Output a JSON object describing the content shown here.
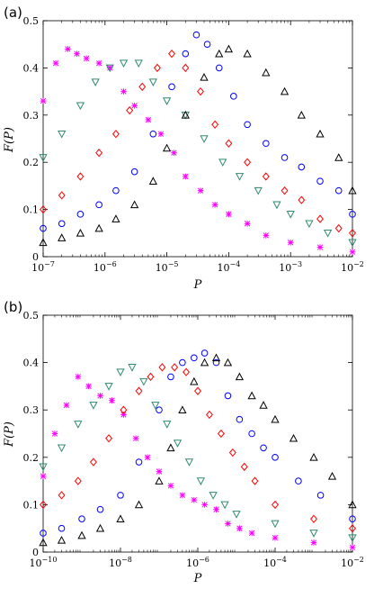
{
  "chart_data": [
    {
      "panel": "(a)",
      "type": "scatter",
      "xlabel": "P",
      "ylabel": "F(P)",
      "xscale": "log",
      "xlim": [
        1e-07,
        0.01
      ],
      "ylim": [
        0,
        0.5
      ],
      "x_ticks": [
        1e-07,
        1e-06,
        1e-05,
        0.0001,
        0.001,
        0.01
      ],
      "x_tick_labels": [
        {
          "base": "10",
          "exp": "−7"
        },
        {
          "base": "10",
          "exp": "−6"
        },
        {
          "base": "10",
          "exp": "−5"
        },
        {
          "base": "10",
          "exp": "−4"
        },
        {
          "base": "10",
          "exp": "−3"
        },
        {
          "base": "10",
          "exp": "−2"
        }
      ],
      "y_ticks": [
        0,
        0.1,
        0.2,
        0.3,
        0.4,
        0.5
      ],
      "y_tick_labels": [
        "0",
        "0.1",
        "0.2",
        "0.3",
        "0.4",
        "0.5"
      ],
      "grid": false,
      "series": [
        {
          "marker": "asterisk",
          "color": "#ff00ff",
          "x": [
            1e-07,
            1.6e-07,
            2.5e-07,
            3.5e-07,
            5e-07,
            8e-07,
            1.2e-06,
            2e-06,
            3e-06,
            5e-06,
            8e-06,
            1.3e-05,
            2e-05,
            3.5e-05,
            6e-05,
            0.0001,
            0.0002,
            0.0004,
            0.001,
            0.003,
            0.01
          ],
          "y": [
            0.33,
            0.41,
            0.44,
            0.43,
            0.42,
            0.41,
            0.4,
            0.35,
            0.32,
            0.29,
            0.26,
            0.22,
            0.17,
            0.14,
            0.11,
            0.09,
            0.07,
            0.045,
            0.03,
            0.02,
            0.01
          ]
        },
        {
          "marker": "triangle-down",
          "color": "#2e8b6e",
          "x": [
            1e-07,
            2e-07,
            4e-07,
            7e-07,
            1.2e-06,
            2e-06,
            3.5e-06,
            6e-06,
            1e-05,
            2e-05,
            4e-05,
            8e-05,
            0.00015,
            0.0003,
            0.0006,
            0.001,
            0.002,
            0.004,
            0.01
          ],
          "y": [
            0.21,
            0.26,
            0.32,
            0.37,
            0.4,
            0.41,
            0.41,
            0.37,
            0.33,
            0.3,
            0.25,
            0.2,
            0.17,
            0.14,
            0.11,
            0.09,
            0.07,
            0.05,
            0.03
          ]
        },
        {
          "marker": "diamond",
          "color": "#ff0000",
          "x": [
            1e-07,
            2e-07,
            4e-07,
            8e-07,
            1.5e-06,
            2.5e-06,
            4e-06,
            7e-06,
            1.2e-05,
            2e-05,
            3.5e-05,
            6e-05,
            0.0001,
            0.0002,
            0.0004,
            0.0008,
            0.0015,
            0.003,
            0.006,
            0.01
          ],
          "y": [
            0.1,
            0.13,
            0.17,
            0.22,
            0.26,
            0.31,
            0.36,
            0.4,
            0.43,
            0.4,
            0.35,
            0.28,
            0.24,
            0.2,
            0.17,
            0.14,
            0.12,
            0.08,
            0.06,
            0.05
          ]
        },
        {
          "marker": "circle",
          "color": "#0000ff",
          "x": [
            1e-07,
            2e-07,
            4e-07,
            8e-07,
            1.5e-06,
            3e-06,
            6e-06,
            1.2e-05,
            2e-05,
            3e-05,
            4.5e-05,
            7e-05,
            0.00012,
            0.0002,
            0.0004,
            0.0008,
            0.0015,
            0.003,
            0.006,
            0.01
          ],
          "y": [
            0.06,
            0.07,
            0.09,
            0.11,
            0.14,
            0.18,
            0.26,
            0.36,
            0.43,
            0.47,
            0.45,
            0.4,
            0.34,
            0.28,
            0.24,
            0.21,
            0.19,
            0.16,
            0.14,
            0.09
          ]
        },
        {
          "marker": "triangle-up",
          "color": "#000000",
          "x": [
            1e-07,
            2e-07,
            4e-07,
            8e-07,
            1.5e-06,
            3e-06,
            6e-06,
            1e-05,
            2e-05,
            4e-05,
            7e-05,
            0.0001,
            0.0002,
            0.0004,
            0.0008,
            0.0015,
            0.003,
            0.006,
            0.01
          ],
          "y": [
            0.03,
            0.04,
            0.05,
            0.06,
            0.08,
            0.11,
            0.16,
            0.23,
            0.3,
            0.38,
            0.43,
            0.44,
            0.43,
            0.39,
            0.35,
            0.3,
            0.26,
            0.21,
            0.14
          ]
        }
      ]
    },
    {
      "panel": "(b)",
      "type": "scatter",
      "xlabel": "P",
      "ylabel": "F(P)",
      "xscale": "log",
      "xlim": [
        1e-10,
        0.01
      ],
      "ylim": [
        0,
        0.5
      ],
      "x_ticks": [
        1e-10,
        1e-08,
        1e-06,
        0.0001,
        0.01
      ],
      "x_tick_labels": [
        {
          "base": "10",
          "exp": "−10"
        },
        {
          "base": "10",
          "exp": "−8"
        },
        {
          "base": "10",
          "exp": "−6"
        },
        {
          "base": "10",
          "exp": "−4"
        },
        {
          "base": "10",
          "exp": "−2"
        }
      ],
      "y_ticks": [
        0,
        0.1,
        0.2,
        0.3,
        0.4,
        0.5
      ],
      "y_tick_labels": [
        "0",
        "0.1",
        "0.2",
        "0.3",
        "0.4",
        "0.5"
      ],
      "grid": false,
      "series": [
        {
          "marker": "asterisk",
          "color": "#ff00ff",
          "x": [
            1e-10,
            2e-10,
            4e-10,
            8e-10,
            1.5e-09,
            3e-09,
            6e-09,
            1.2e-08,
            2.5e-08,
            5e-08,
            1e-07,
            2e-07,
            4e-07,
            8e-07,
            1.5e-06,
            3e-06,
            6e-06,
            1.2e-05,
            2.5e-05,
            0.0001,
            0.001,
            0.01
          ],
          "y": [
            0.16,
            0.25,
            0.31,
            0.37,
            0.35,
            0.33,
            0.32,
            0.29,
            0.24,
            0.2,
            0.17,
            0.14,
            0.12,
            0.11,
            0.1,
            0.09,
            0.06,
            0.05,
            0.04,
            0.03,
            0.02,
            0.01
          ]
        },
        {
          "marker": "triangle-down",
          "color": "#2e8b6e",
          "x": [
            1e-10,
            3e-10,
            8e-10,
            2e-09,
            5e-09,
            1e-08,
            2e-08,
            4e-08,
            8e-08,
            1.6e-07,
            3e-07,
            6e-07,
            1.2e-06,
            2.5e-06,
            5e-06,
            1e-05,
            0.0001,
            0.001,
            0.01
          ],
          "y": [
            0.18,
            0.22,
            0.27,
            0.31,
            0.35,
            0.38,
            0.39,
            0.36,
            0.31,
            0.27,
            0.23,
            0.19,
            0.15,
            0.12,
            0.1,
            0.08,
            0.06,
            0.04,
            0.03
          ]
        },
        {
          "marker": "diamond",
          "color": "#ff0000",
          "x": [
            1e-10,
            3e-10,
            8e-10,
            2e-09,
            5e-09,
            1.2e-08,
            3e-08,
            6e-08,
            1.2e-07,
            2.5e-07,
            5e-07,
            1e-06,
            2e-06,
            4e-06,
            8e-06,
            1.6e-05,
            3e-05,
            0.0001,
            0.001,
            0.01
          ],
          "y": [
            0.1,
            0.12,
            0.15,
            0.19,
            0.24,
            0.3,
            0.34,
            0.37,
            0.39,
            0.39,
            0.38,
            0.34,
            0.29,
            0.25,
            0.21,
            0.18,
            0.15,
            0.1,
            0.07,
            0.05
          ]
        },
        {
          "marker": "circle",
          "color": "#0000ff",
          "x": [
            1e-10,
            3e-10,
            1e-09,
            3e-09,
            1e-08,
            3e-08,
            1e-07,
            2e-07,
            4e-07,
            8e-07,
            1.5e-06,
            3e-06,
            6e-06,
            1.2e-05,
            2.5e-05,
            5e-05,
            0.0001,
            0.0004,
            0.0015,
            0.01
          ],
          "y": [
            0.04,
            0.05,
            0.07,
            0.09,
            0.12,
            0.19,
            0.3,
            0.37,
            0.4,
            0.41,
            0.42,
            0.4,
            0.33,
            0.28,
            0.25,
            0.22,
            0.2,
            0.15,
            0.12,
            0.07
          ]
        },
        {
          "marker": "triangle-up",
          "color": "#000000",
          "x": [
            1e-10,
            3e-10,
            1e-09,
            3e-09,
            1e-08,
            3e-08,
            1e-07,
            2e-07,
            4e-07,
            8e-07,
            1.5e-06,
            3e-06,
            6e-06,
            1.2e-05,
            2.5e-05,
            5e-05,
            0.0001,
            0.0003,
            0.001,
            0.003,
            0.01
          ],
          "y": [
            0.02,
            0.025,
            0.035,
            0.05,
            0.07,
            0.1,
            0.15,
            0.22,
            0.3,
            0.36,
            0.4,
            0.41,
            0.4,
            0.37,
            0.33,
            0.31,
            0.28,
            0.24,
            0.2,
            0.16,
            0.1
          ]
        }
      ]
    }
  ]
}
